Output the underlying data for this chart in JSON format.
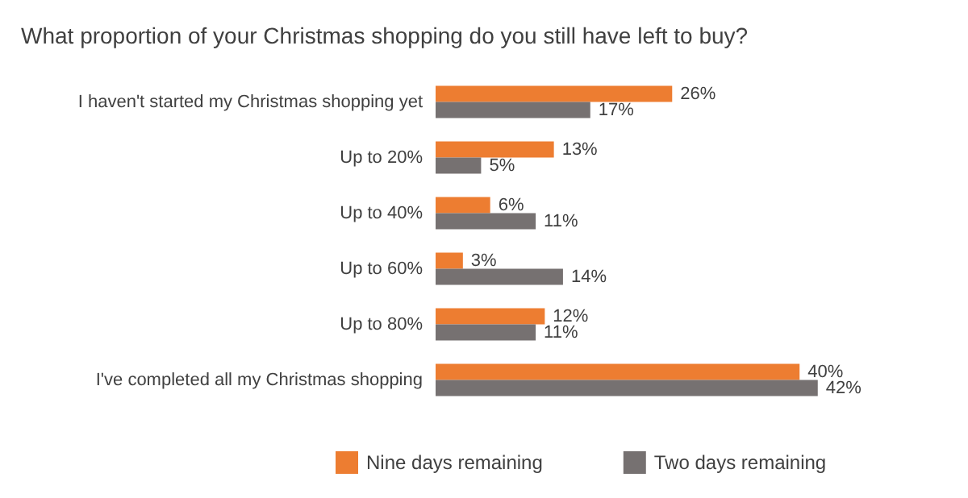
{
  "chart_data": {
    "type": "bar",
    "orientation": "horizontal",
    "title": "What proportion of your Christmas shopping do you still have left to buy?",
    "categories": [
      "I haven't started my Christmas shopping yet",
      "Up to 20%",
      "Up to 40%",
      "Up to 60%",
      "Up to 80%",
      "I've completed all my Christmas shopping"
    ],
    "series": [
      {
        "name": "Nine days remaining",
        "color": "#ed7d31",
        "values": [
          26,
          13,
          6,
          3,
          12,
          40
        ],
        "value_labels": [
          "26%",
          "13%",
          "6%",
          "3%",
          "12%",
          "40%"
        ]
      },
      {
        "name": "Two days remaining",
        "color": "#767171",
        "values": [
          17,
          5,
          11,
          14,
          11,
          42
        ],
        "value_labels": [
          "17%",
          "5%",
          "11%",
          "14%",
          "11%",
          "42%"
        ]
      }
    ],
    "legend": "bottom"
  }
}
